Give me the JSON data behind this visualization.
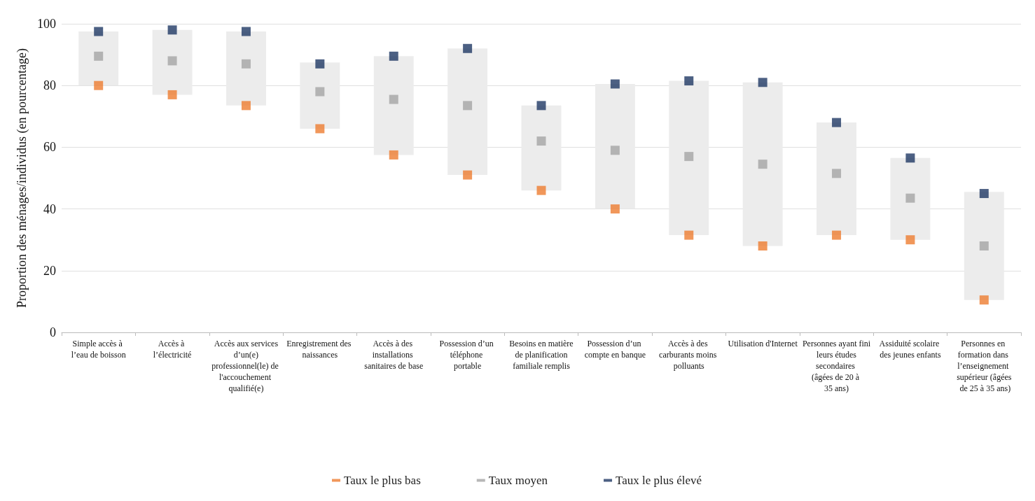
{
  "chart_data": {
    "type": "bar",
    "ylabel": "Proportion des ménages/individus (en pourcentage)",
    "categories": [
      "Simple accès à l’eau de boisson",
      "Accès à l’électricité",
      "Accès aux services d’un(e) professionnel(le) de l'accouchement qualifié(e)",
      "Enregistrement des naissances",
      "Accès à des installations sanitaires de base",
      "Possession d’un téléphone portable",
      "Besoins en matière de planification familiale remplis",
      "Possession d’un compte en banque",
      "Accès à des carburants moins polluants",
      "Utilisation d'Internet",
      "Personnes ayant fini leurs études secondaires (âgées de 20 à 35 ans)",
      "Assiduité scolaire des jeunes enfants",
      "Personnes en formation dans l’enseignement supérieur (âgées de 25 à 35 ans)"
    ],
    "series": [
      {
        "color": "#ececec",
        "base": [
          80,
          77,
          73.5,
          66,
          57.5,
          51,
          46,
          40,
          31.5,
          28,
          31.5,
          30,
          10.5
        ],
        "values": [
          17.5,
          21,
          24,
          21.5,
          32,
          41,
          27.5,
          40.5,
          50,
          53,
          36.5,
          26.5,
          35
        ]
      },
      {
        "type": "scatter",
        "name": "Taux le plus bas",
        "color": "#ed7d31",
        "marker": "square",
        "values": [
          80,
          77,
          73.5,
          66,
          57.5,
          51,
          46,
          40,
          31.5,
          28,
          31.5,
          30,
          10.5
        ]
      },
      {
        "type": "scatter",
        "name": "Taux moyen",
        "color": "#a5a5a5",
        "marker": "square",
        "values": [
          89.5,
          88,
          87,
          78,
          75.5,
          73.5,
          62,
          59,
          57,
          54.5,
          51.5,
          43.5,
          28
        ]
      },
      {
        "type": "scatter",
        "name": "Taux le plus élevé",
        "color": "#1f3864",
        "marker": "square",
        "values": [
          97.5,
          98,
          97.5,
          87,
          89.5,
          92,
          73.5,
          80.5,
          81.5,
          81,
          68,
          56.5,
          45
        ]
      }
    ],
    "ylim": [
      0,
      100
    ],
    "yticks": [
      0,
      20,
      40,
      60,
      80,
      100
    ],
    "grid": "y",
    "legend": "bottom"
  }
}
